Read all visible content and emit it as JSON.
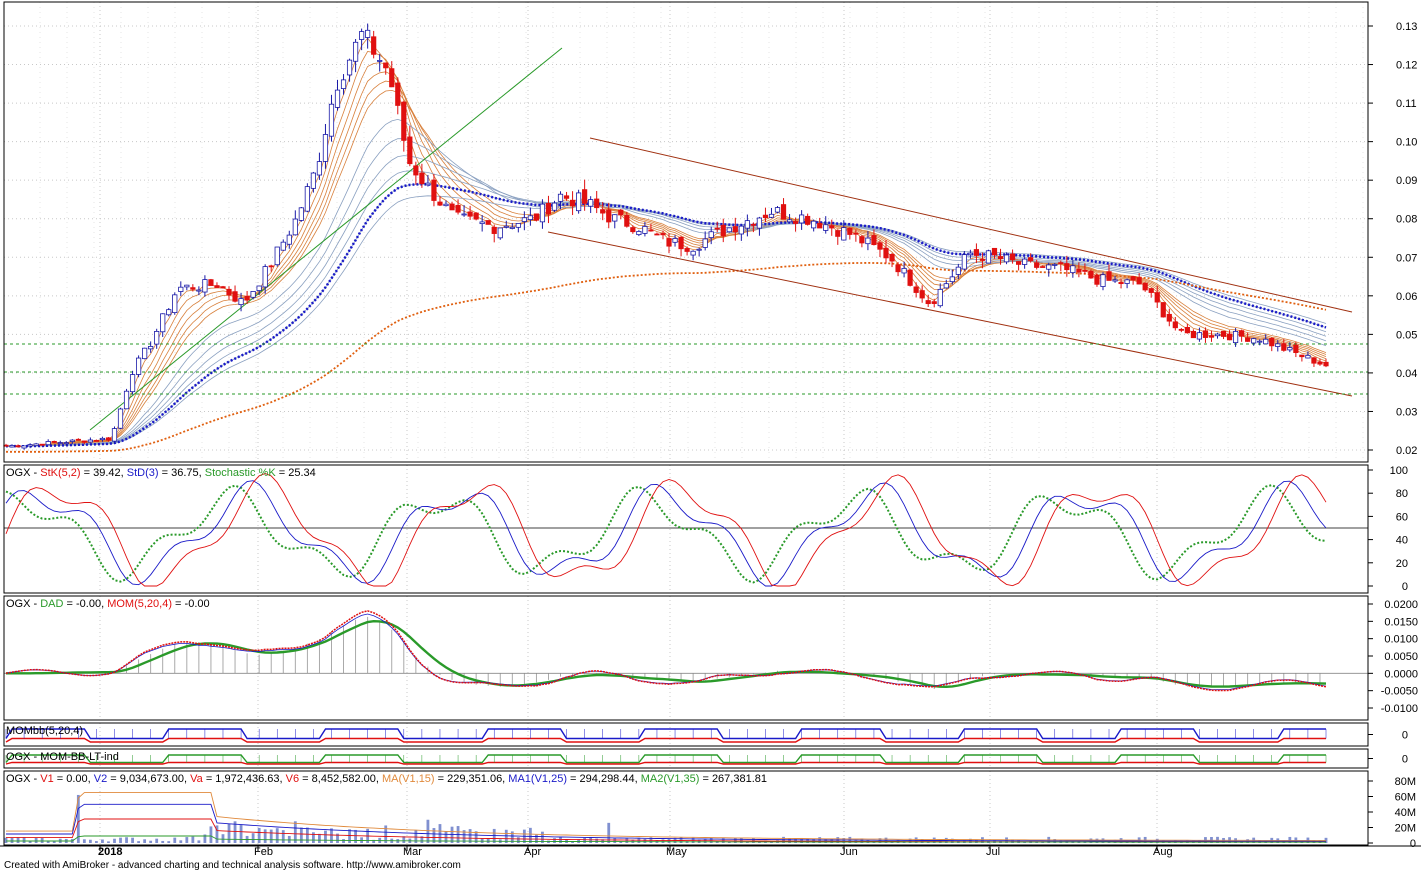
{
  "footer": "Created with AmiBroker - advanced charting and technical analysis software. http://www.amibroker.com",
  "colors": {
    "up_candle": "#1a1aa8",
    "down_candle": "#e01010",
    "grid": "#c8c8c8",
    "dotted_blue": "#1a1ac8",
    "dotted_orange": "#e06010",
    "channel": "#a03010",
    "ema_warm": "#d8803c",
    "ema_cool": "#8aa0c0",
    "green": "#2a9a2a",
    "bars": "#a0a0a0"
  },
  "xaxis": {
    "labels": [
      "2018",
      "Feb",
      "Mar",
      "Apr",
      "May",
      "Jun",
      "Jul",
      "Aug"
    ]
  },
  "price_panel": {
    "ticks": [
      "0.13",
      "0.12",
      "0.11",
      "0.10",
      "0.09",
      "0.08",
      "0.07",
      "0.06",
      "0.05",
      "0.04",
      "0.03",
      "0.02"
    ]
  },
  "stoch_panel": {
    "header": [
      {
        "text": "OGX - ",
        "color": "#000000"
      },
      {
        "text": "StK(5,2)",
        "color": "#e01010"
      },
      {
        "text": " = 39.42, ",
        "color": "#000000"
      },
      {
        "text": "StD(3)",
        "color": "#1a1ac8"
      },
      {
        "text": " = 36.75, ",
        "color": "#000000"
      },
      {
        "text": "Stochastic %K",
        "color": "#2a9a2a"
      },
      {
        "text": " = 25.34",
        "color": "#000000"
      }
    ],
    "ticks": [
      "100",
      "80",
      "60",
      "40",
      "20",
      "0"
    ]
  },
  "mom_panel": {
    "header": [
      {
        "text": "OGX - ",
        "color": "#000000"
      },
      {
        "text": "DAD",
        "color": "#2a9a2a"
      },
      {
        "text": " = -0.00, ",
        "color": "#000000"
      },
      {
        "text": "MOM(5,20,4)",
        "color": "#e01010"
      },
      {
        "text": " = -0.00",
        "color": "#000000"
      }
    ],
    "ticks": [
      "0.0200",
      "0.0150",
      "0.0100",
      "0.0050",
      "0.0000",
      "-0.0050",
      "-0.0100"
    ]
  },
  "mombb_panel": {
    "header": "MOMbb(5,20,4)",
    "tick": "0"
  },
  "momlt_panel": {
    "header": "OGX - MOM-BB-LT-ind",
    "tick": "0"
  },
  "volume_panel": {
    "header": [
      {
        "text": "OGX - ",
        "color": "#000000"
      },
      {
        "text": "V1",
        "color": "#e01010"
      },
      {
        "text": " = 0.00, ",
        "color": "#000000"
      },
      {
        "text": "V2",
        "color": "#1a1ac8"
      },
      {
        "text": " = 9,034,673.00, ",
        "color": "#000000"
      },
      {
        "text": "Va",
        "color": "#e01010"
      },
      {
        "text": " = 1,972,436.63, ",
        "color": "#000000"
      },
      {
        "text": "V6",
        "color": "#e01010"
      },
      {
        "text": " = 8,452,582.00, ",
        "color": "#000000"
      },
      {
        "text": "MA(V1,15)",
        "color": "#e08a3c"
      },
      {
        "text": " = 229,351.06, ",
        "color": "#000000"
      },
      {
        "text": "MA1(V1,25)",
        "color": "#1a1ac8"
      },
      {
        "text": " = 294,298.44, ",
        "color": "#000000"
      },
      {
        "text": "MA2(V1,35)",
        "color": "#2a9a2a"
      },
      {
        "text": " = 267,381.81",
        "color": "#000000"
      }
    ],
    "ticks": [
      "80M",
      "60M",
      "40M",
      "20M",
      "0"
    ]
  },
  "chart_data": {
    "type": "line",
    "symbol": "OGX",
    "price_range": [
      0.02,
      0.13
    ],
    "price_path_x": [
      0,
      4,
      8,
      9.5,
      11,
      13,
      16,
      18,
      20,
      22,
      23.5,
      25,
      27,
      29,
      30.5,
      32,
      34,
      37,
      40,
      42,
      44,
      46,
      48,
      50,
      52,
      55,
      58,
      61,
      64,
      67,
      70,
      73,
      75,
      77,
      80,
      83,
      86,
      89,
      92,
      95,
      97,
      100
    ],
    "price_path_y": [
      0.021,
      0.022,
      0.023,
      0.04,
      0.048,
      0.062,
      0.063,
      0.058,
      0.068,
      0.08,
      0.093,
      0.115,
      0.128,
      0.118,
      0.095,
      0.088,
      0.08,
      0.078,
      0.08,
      0.086,
      0.084,
      0.08,
      0.078,
      0.074,
      0.073,
      0.078,
      0.082,
      0.08,
      0.076,
      0.07,
      0.058,
      0.071,
      0.07,
      0.068,
      0.067,
      0.064,
      0.063,
      0.05,
      0.05,
      0.049,
      0.046,
      0.042
    ],
    "stochastic_k": [
      39.42
    ],
    "stochastic_d": [
      36.75
    ],
    "stochastic_pct_k": [
      25.34
    ],
    "dad": [
      "-0.00"
    ],
    "mom": [
      "-0.00"
    ],
    "volume": {
      "V1": "0.00",
      "V2": "9,034,673.00",
      "Va": "1,972,436.63",
      "V6": "8,452,582.00",
      "MA(V1,15)": "229,351.06",
      "MA1(V1,25)": "294,298.44",
      "MA2(V1,35)": "267,381.81"
    }
  }
}
